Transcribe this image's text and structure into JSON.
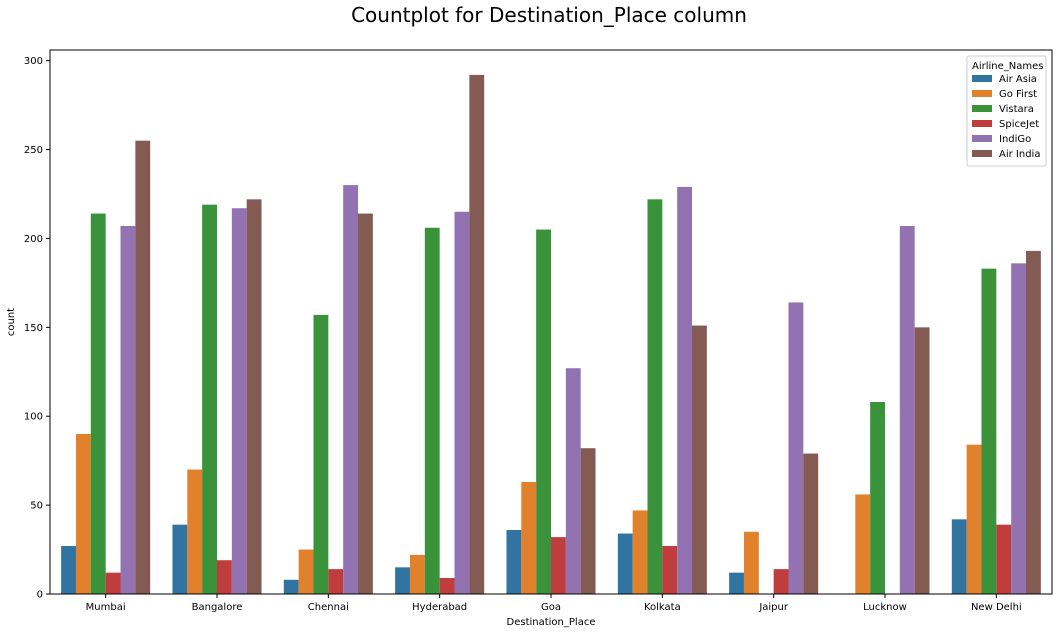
{
  "chart_data": {
    "type": "bar",
    "title": "Countplot for Destination_Place column",
    "xlabel": "Destination_Place",
    "ylabel": "count",
    "ylim": [
      0,
      306
    ],
    "yticks": [
      0,
      50,
      100,
      150,
      200,
      250,
      300
    ],
    "grid": false,
    "legend_title": "Airline_Names",
    "legend_position": "top-right",
    "categories": [
      "Mumbai",
      "Bangalore",
      "Chennai",
      "Hyderabad",
      "Goa",
      "Kolkata",
      "Jaipur",
      "Lucknow",
      "New Delhi"
    ],
    "series": [
      {
        "name": "Air Asia",
        "color": "#3274a1",
        "values": [
          27,
          39,
          8,
          15,
          36,
          34,
          12,
          0,
          42
        ]
      },
      {
        "name": "Go First",
        "color": "#e1812c",
        "values": [
          90,
          70,
          25,
          22,
          63,
          47,
          35,
          56,
          84
        ]
      },
      {
        "name": "Vistara",
        "color": "#3a923a",
        "values": [
          214,
          219,
          157,
          206,
          205,
          222,
          0,
          108,
          183
        ]
      },
      {
        "name": "SpiceJet",
        "color": "#c03d3e",
        "values": [
          12,
          19,
          14,
          9,
          32,
          27,
          14,
          0,
          39
        ]
      },
      {
        "name": "IndiGo",
        "color": "#9372b2",
        "values": [
          207,
          217,
          230,
          215,
          127,
          229,
          164,
          207,
          186
        ]
      },
      {
        "name": "Air India",
        "color": "#845b53",
        "values": [
          255,
          222,
          214,
          292,
          82,
          151,
          79,
          150,
          193
        ]
      }
    ]
  }
}
